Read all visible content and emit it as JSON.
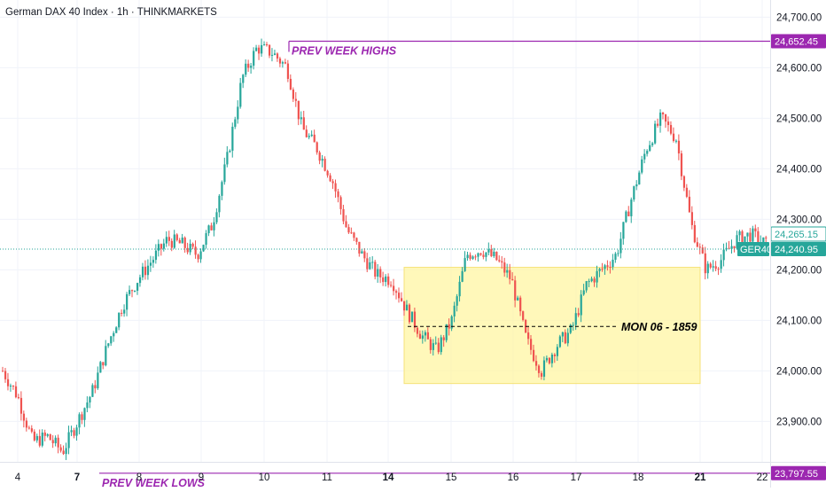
{
  "header": {
    "title": "German DAX 40 Index · 1h · THINKMARKETS"
  },
  "chart_data": {
    "type": "candlestick",
    "title": "German DAX 40 Index · 1h · THINKMARKETS",
    "ylim": [
      23820,
      24720
    ],
    "y_ticks": [
      "24,700.00",
      "24,600.00",
      "24,500.00",
      "24,400.00",
      "24,300.00",
      "24,200.00",
      "24,100.00",
      "24,000.00",
      "23,900.00"
    ],
    "y_tick_values": [
      24700,
      24600,
      24500,
      24400,
      24300,
      24200,
      24100,
      24000,
      23900
    ],
    "x_ticks": [
      {
        "label": "4",
        "bold": false
      },
      {
        "label": "7",
        "bold": true
      },
      {
        "label": "8",
        "bold": false
      },
      {
        "label": "9",
        "bold": false
      },
      {
        "label": "10",
        "bold": false
      },
      {
        "label": "11",
        "bold": false
      },
      {
        "label": "14",
        "bold": true
      },
      {
        "label": "15",
        "bold": false
      },
      {
        "label": "16",
        "bold": false
      },
      {
        "label": "17",
        "bold": false
      },
      {
        "label": "18",
        "bold": false
      },
      {
        "label": "21",
        "bold": true
      },
      {
        "label": "22",
        "bold": false
      }
    ],
    "levels": [
      {
        "name": "PREV WEEK HIGHS",
        "value": 24652.45,
        "label": "24,652.45",
        "color": "#9c27b0"
      },
      {
        "name": "PREV WEEK LOWS",
        "value": 23797.55,
        "label": "23,797.55",
        "color": "#9c27b0"
      }
    ],
    "current_price": {
      "symbol": "GER40",
      "value": 24240.95,
      "label": "24,240.95",
      "color": "#26a69a"
    },
    "last_price_label": "24,265.15",
    "range_box": {
      "label": "MON 06 - 1859",
      "mid_value": 24088,
      "top": 24205,
      "bottom": 23975,
      "color": "#fff59d"
    },
    "anchors": [
      24000,
      23950,
      23860,
      23870,
      23840,
      23900,
      23960,
      24050,
      24130,
      24180,
      24220,
      24260,
      24250,
      24230,
      24290,
      24420,
      24580,
      24640,
      24630,
      24600,
      24480,
      24440,
      24380,
      24280,
      24230,
      24190,
      24180,
      24120,
      24070,
      24040,
      24100,
      24230,
      24240,
      24220,
      24180,
      24060,
      24000,
      24050,
      24080,
      24170,
      24200,
      24230,
      24340,
      24440,
      24500,
      24460,
      24290,
      24200,
      24220,
      24260,
      24270,
      24250
    ],
    "colors": {
      "up": "#26a69a",
      "down": "#ef5350"
    }
  }
}
